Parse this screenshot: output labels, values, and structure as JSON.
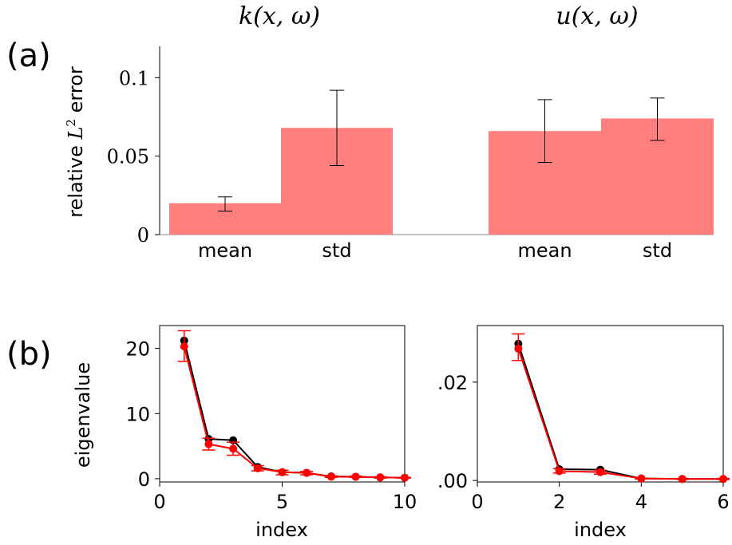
{
  "panel_labels": {
    "a": "(a)",
    "b": "(b)"
  },
  "column_titles": {
    "left": "k(x, ω)",
    "right": "u(x, ω)"
  },
  "chart_data": [
    {
      "type": "bar",
      "id": "a-k",
      "categories": [
        "mean",
        "std"
      ],
      "values": [
        0.02,
        0.068
      ],
      "errors": [
        [
          0.015,
          0.024
        ],
        [
          0.044,
          0.092
        ]
      ],
      "ylabel": "relative L² error",
      "ylabel_parts": {
        "pre": "relative ",
        "var": "L",
        "sup": "2",
        "post": " error"
      },
      "ylim": [
        0,
        0.12
      ],
      "yticks": [
        0,
        0.05,
        0.1
      ],
      "ytick_labels": [
        "0",
        "0.05",
        "0.1"
      ],
      "color": "#ff7f7f"
    },
    {
      "type": "bar",
      "id": "a-u",
      "categories": [
        "mean",
        "std"
      ],
      "values": [
        0.066,
        0.074
      ],
      "errors": [
        [
          0.046,
          0.086
        ],
        [
          0.06,
          0.087
        ]
      ],
      "ylim": [
        0,
        0.12
      ],
      "color": "#ff7f7f"
    },
    {
      "type": "line",
      "id": "b-k",
      "xlabel": "index",
      "ylabel": "eigenvalue",
      "xlim": [
        0,
        10
      ],
      "ylim": [
        -0.5,
        23.5
      ],
      "xticks": [
        0,
        5,
        10
      ],
      "xtick_labels": [
        "0",
        "5",
        "10"
      ],
      "yticks": [
        0,
        10,
        20
      ],
      "ytick_labels": [
        "0",
        "10",
        "20"
      ],
      "series": [
        {
          "color": "#000000",
          "x": [
            1,
            2,
            3,
            4,
            5,
            6,
            7,
            8,
            9,
            10
          ],
          "y": [
            21.2,
            6.1,
            5.9,
            1.8,
            1.0,
            0.9,
            0.35,
            0.3,
            0.2,
            0.15
          ]
        },
        {
          "color": "#ff0000",
          "x": [
            1,
            2,
            3,
            4,
            5,
            6,
            7,
            8,
            9,
            10
          ],
          "y": [
            20.3,
            5.3,
            4.6,
            1.6,
            1.0,
            0.9,
            0.3,
            0.3,
            0.2,
            0.15
          ],
          "err_low": [
            18.0,
            4.4,
            3.6,
            1.2,
            0.6,
            0.6,
            0.2,
            0.2,
            0.1,
            0.1
          ],
          "err_high": [
            22.7,
            6.2,
            5.6,
            2.0,
            1.3,
            1.1,
            0.45,
            0.4,
            0.3,
            0.2
          ]
        }
      ]
    },
    {
      "type": "line",
      "id": "b-u",
      "xlabel": "index",
      "xlim": [
        0,
        6
      ],
      "ylim": [
        -0.0003,
        0.0315
      ],
      "xticks": [
        0,
        2,
        4,
        6
      ],
      "xtick_labels": [
        "0",
        "2",
        "4",
        "6"
      ],
      "yticks": [
        0,
        0.02
      ],
      "ytick_labels": [
        ".00",
        ".02"
      ],
      "series": [
        {
          "color": "#000000",
          "x": [
            1,
            2,
            3,
            4,
            5,
            6
          ],
          "y": [
            0.0278,
            0.0023,
            0.0022,
            0.0004,
            0.0003,
            0.0003
          ]
        },
        {
          "color": "#ff0000",
          "x": [
            1,
            2,
            3,
            4,
            5,
            6
          ],
          "y": [
            0.0268,
            0.0019,
            0.0017,
            0.0004,
            0.0003,
            0.0003
          ],
          "err_low": [
            0.0244,
            0.0015,
            0.0013,
            0.0003,
            0.0002,
            0.0002
          ],
          "err_high": [
            0.0298,
            0.0024,
            0.0021,
            0.0005,
            0.0004,
            0.0004
          ]
        }
      ]
    }
  ]
}
